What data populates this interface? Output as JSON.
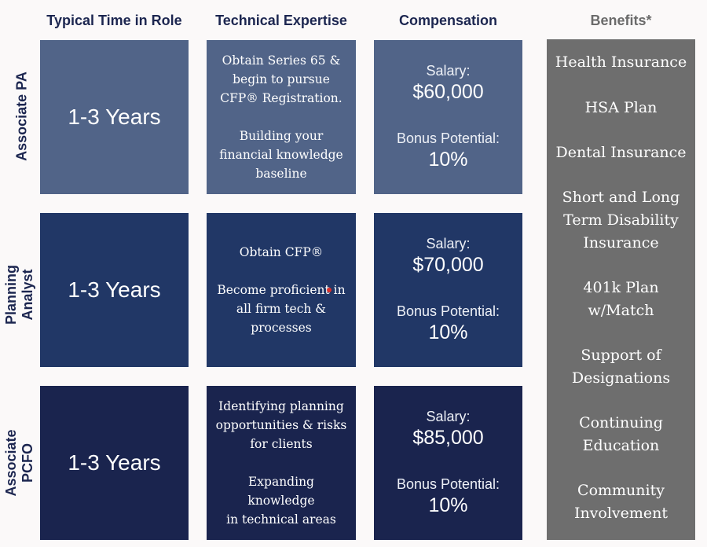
{
  "headers": {
    "time": "Typical Time in Role",
    "tech": "Technical Expertise",
    "comp": "Compensation",
    "benefits": "Benefits*"
  },
  "rows": [
    {
      "label_lines": [
        "Associate PA"
      ],
      "time": "1-3 Years",
      "tech": [
        "Obtain Series 65 &",
        "begin to pursue",
        "CFP® Registration.",
        "",
        "Building your",
        "financial knowledge",
        "baseline"
      ],
      "salary_label": "Salary:",
      "salary": "$60,000",
      "bonus_label": "Bonus Potential:",
      "bonus": "10%"
    },
    {
      "label_lines": [
        "Planning",
        "Analyst"
      ],
      "time": "1-3 Years",
      "tech": [
        "Obtain CFP®",
        "",
        "Become proficient in",
        "all firm tech &",
        "processes"
      ],
      "salary_label": "Salary:",
      "salary": "$70,000",
      "bonus_label": "Bonus Potential:",
      "bonus": "10%"
    },
    {
      "label_lines": [
        "Associate",
        "PCFO"
      ],
      "time": "1-3 Years",
      "tech": [
        "Identifying planning",
        "opportunities & risks",
        "for clients",
        "",
        "Expanding",
        "knowledge",
        "in technical areas"
      ],
      "salary_label": "Salary:",
      "salary": "$85,000",
      "bonus_label": "Bonus Potential:",
      "bonus": "10%"
    }
  ],
  "benefits": [
    [
      "Health Insurance"
    ],
    [
      "HSA Plan"
    ],
    [
      "Dental Insurance"
    ],
    [
      "Short and Long",
      "Term Disability",
      "Insurance"
    ],
    [
      "401k Plan",
      "w/Match"
    ],
    [
      "Support of",
      "Designations"
    ],
    [
      "Continuing",
      "Education"
    ],
    [
      "Community",
      "Involvement"
    ]
  ],
  "colors": {
    "row1": "#516488",
    "row2": "#213766",
    "row3": "#1a244e",
    "benefits_panel": "#6e6e6e",
    "header_text": "#1c2650",
    "benefits_header_text": "#6b6b6b",
    "marker": "#e0302a"
  }
}
